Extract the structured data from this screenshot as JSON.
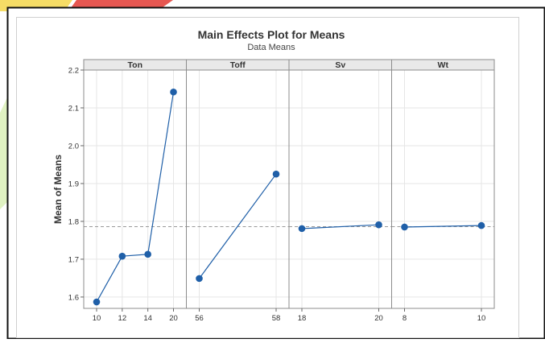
{
  "chart_data": {
    "type": "line",
    "title": "Main Effects Plot for Means",
    "subtitle": "Data Means",
    "ylabel": "Mean of Means",
    "ylim": [
      1.57,
      2.2
    ],
    "yticks": [
      1.6,
      1.7,
      1.8,
      1.9,
      2.0,
      2.1,
      2.2
    ],
    "ytick_labels": [
      "1.6",
      "1.7",
      "1.8",
      "1.9",
      "2.0",
      "2.1",
      "2.2"
    ],
    "reference_line": 1.786,
    "grid": true,
    "panels": [
      {
        "name": "Ton",
        "x": [
          "10",
          "12",
          "14",
          "20"
        ],
        "y": [
          1.587,
          1.708,
          1.713,
          2.142
        ]
      },
      {
        "name": "Toff",
        "x": [
          "56",
          "58"
        ],
        "y": [
          1.649,
          1.925
        ]
      },
      {
        "name": "Sv",
        "x": [
          "18",
          "20"
        ],
        "y": [
          1.781,
          1.791
        ]
      },
      {
        "name": "Wt",
        "x": [
          "8",
          "10"
        ],
        "y": [
          1.785,
          1.789
        ]
      }
    ],
    "colors": {
      "series": "#1f5fa8",
      "reference": "#9a9a9a",
      "grid": "#e6e6e6",
      "strip": "#e9e9e9",
      "frame": "#8c8c8c",
      "outer_frame": "#111111"
    }
  }
}
